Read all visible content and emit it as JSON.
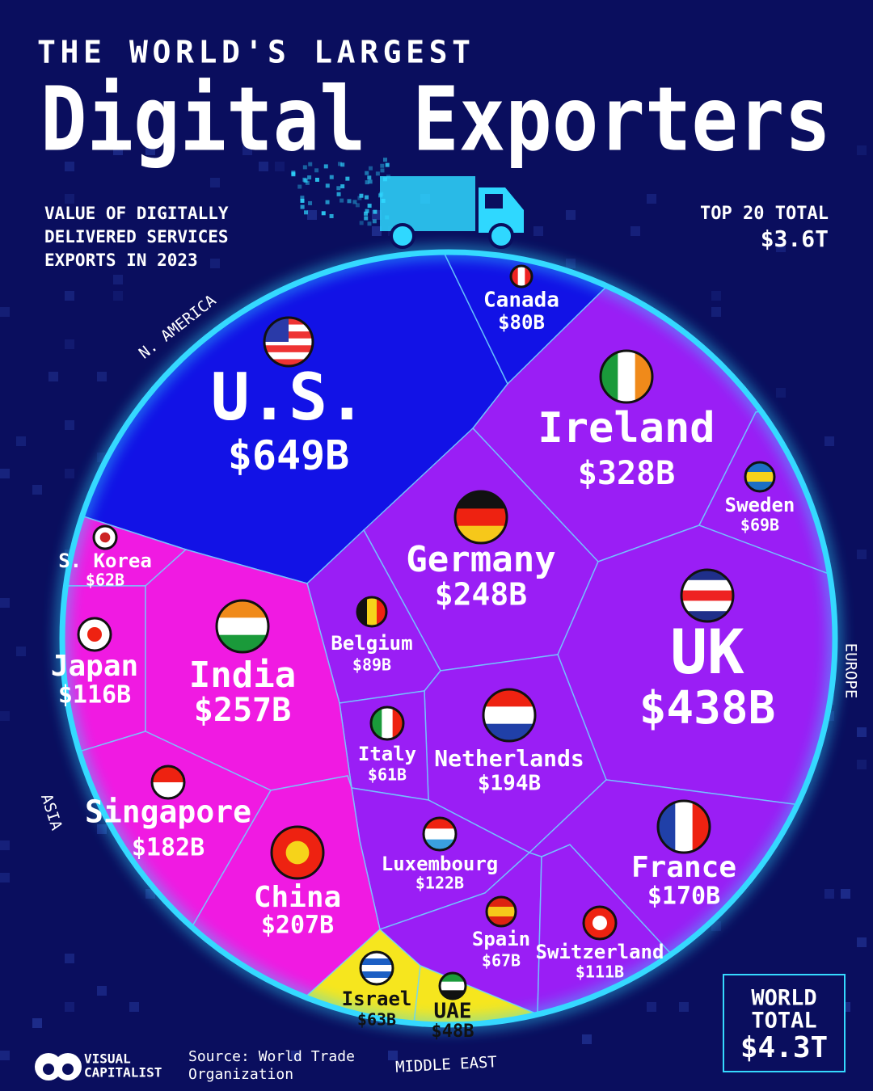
{
  "chart_data": {
    "type": "voronoi",
    "kicker": "THE WORLD'S LARGEST",
    "title": "Digital Exporters",
    "subtitle": [
      "VALUE OF DIGITALLY",
      "DELIVERED SERVICES",
      "EXPORTS IN 2023"
    ],
    "top_total": {
      "label": "TOP 20 TOTAL",
      "value": 3600,
      "value_label": "$3.6T"
    },
    "world_total": {
      "label": [
        "WORLD",
        "TOTAL"
      ],
      "value": 4300,
      "value_label": "$4.3T"
    },
    "series": [
      {
        "name": "N. AMERICA",
        "color": "#1212e6",
        "categories": [
          "U.S.",
          "Canada"
        ],
        "values": [
          649,
          80
        ],
        "value_labels": [
          "$649B",
          "$80B"
        ]
      },
      {
        "name": "EUROPE",
        "color": "#9a1ef5",
        "categories": [
          "Ireland",
          "Sweden",
          "Germany",
          "UK",
          "Belgium",
          "Netherlands",
          "Italy",
          "Luxembourg",
          "Spain",
          "Switzerland",
          "France"
        ],
        "values": [
          328,
          69,
          248,
          438,
          89,
          194,
          61,
          122,
          67,
          111,
          170
        ],
        "value_labels": [
          "$328B",
          "$69B",
          "$248B",
          "$438B",
          "$89B",
          "$194B",
          "$61B",
          "$122B",
          "$67B",
          "$111B",
          "$170B"
        ]
      },
      {
        "name": "ASIA",
        "color": "#f01ae2",
        "categories": [
          "S. Korea",
          "Japan",
          "India",
          "Singapore",
          "China"
        ],
        "values": [
          62,
          116,
          257,
          182,
          207
        ],
        "value_labels": [
          "$62B",
          "$116B",
          "$257B",
          "$182B",
          "$207B"
        ]
      },
      {
        "name": "MIDDLE EAST",
        "color": "#f6e61e",
        "categories": [
          "Israel",
          "UAE"
        ],
        "values": [
          63,
          48
        ],
        "value_labels": [
          "$63B",
          "$48B"
        ]
      }
    ],
    "source": [
      "Source: World Trade",
      "Organization"
    ],
    "brand": [
      "VISUAL",
      "CAPITALIST"
    ]
  }
}
